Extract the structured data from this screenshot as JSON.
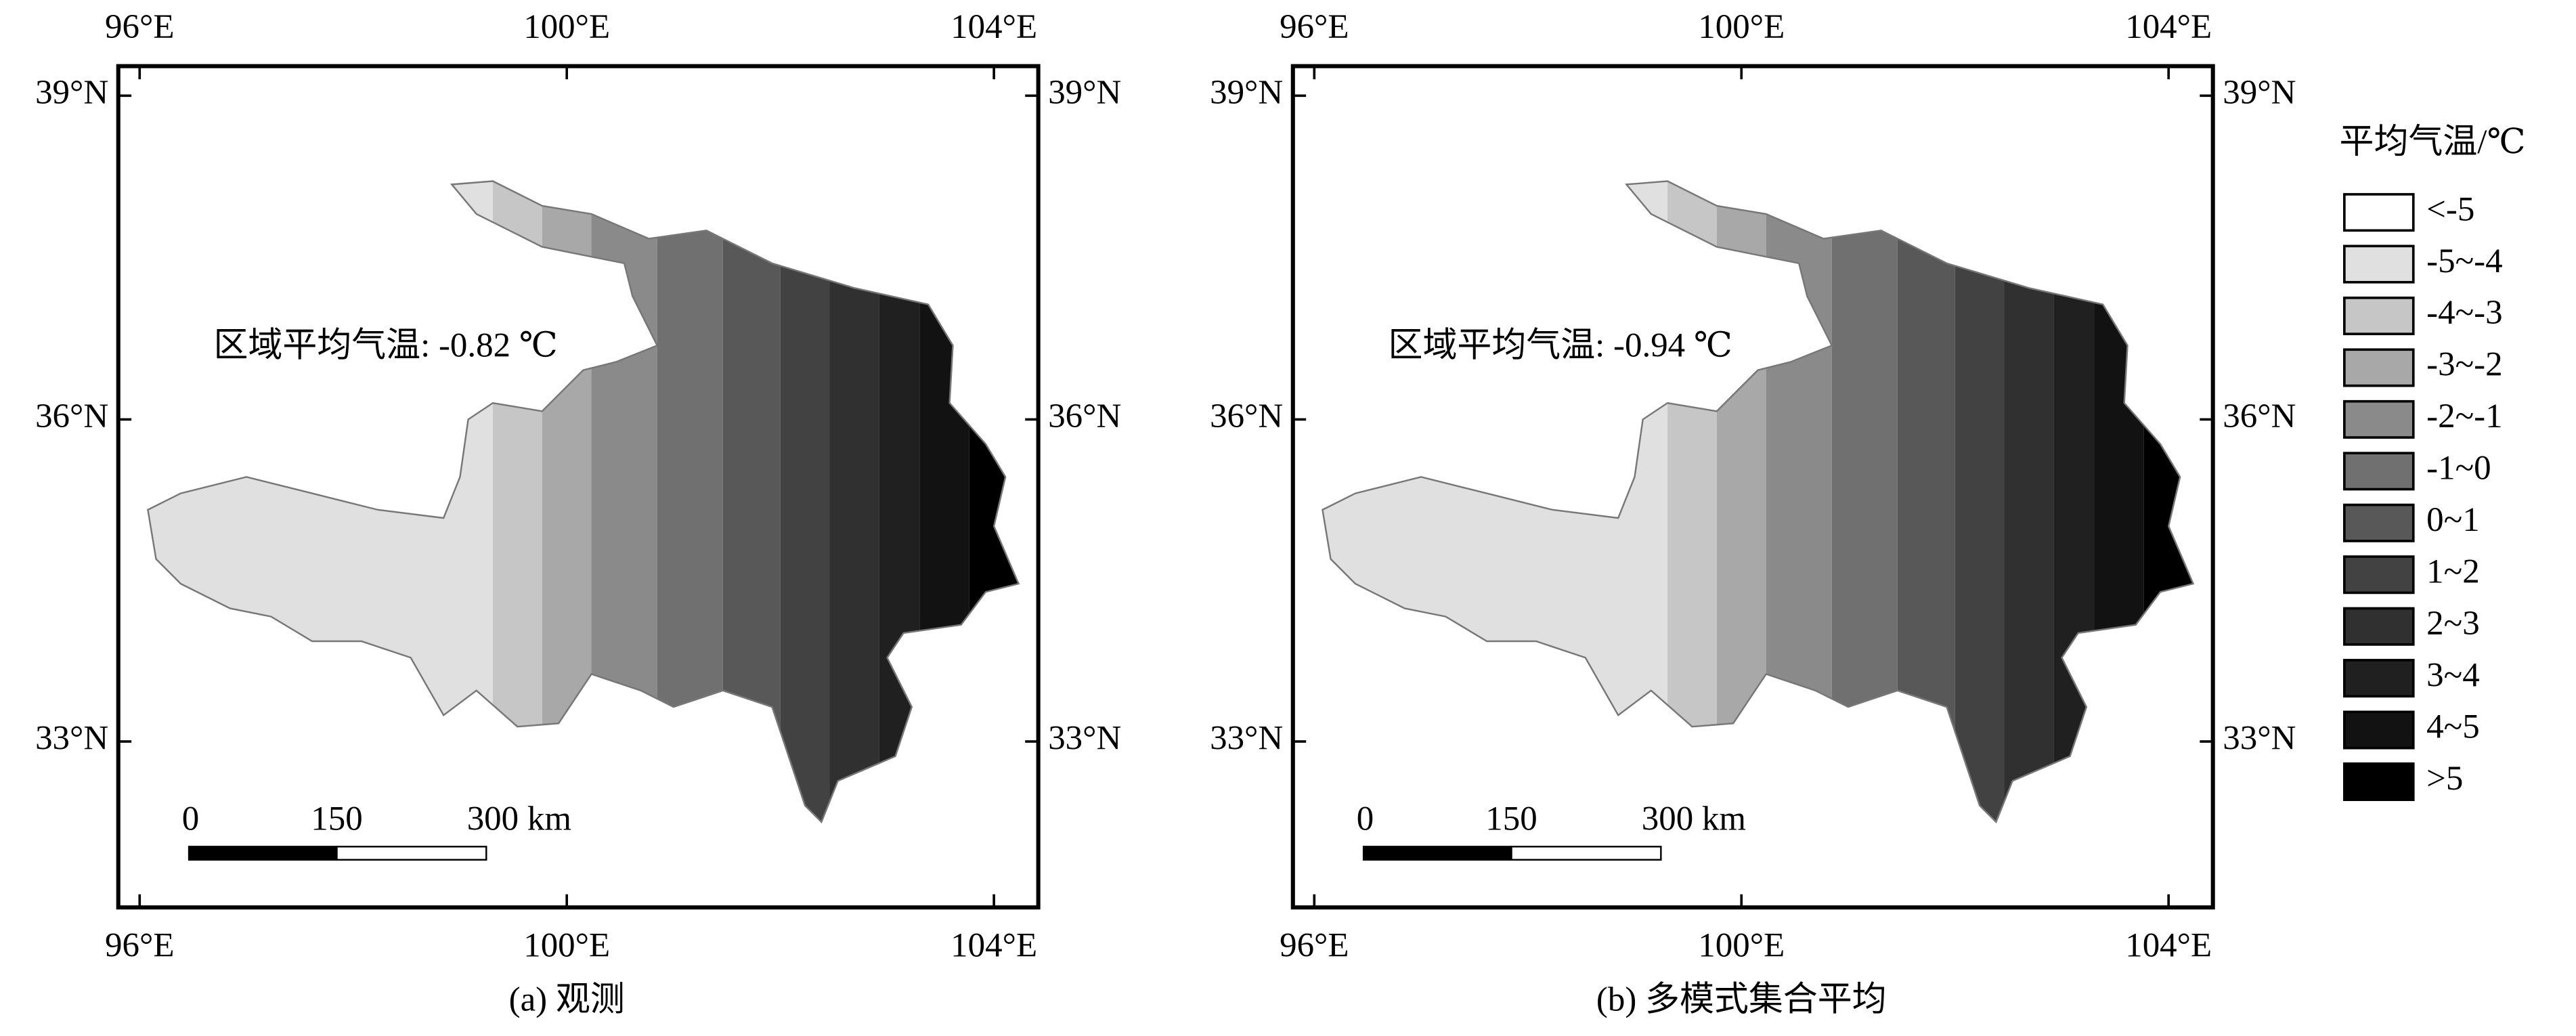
{
  "panels": [
    {
      "caption": "(a) 观测",
      "annotation": "区域平均气温: -0.82 ℃"
    },
    {
      "caption": "(b) 多模式集合平均",
      "annotation": "区域平均气温: -0.94 ℃"
    }
  ],
  "axes": {
    "lon_labels": [
      "96°E",
      "100°E",
      "104°E"
    ],
    "lat_labels": [
      "39°N",
      "36°N",
      "33°N"
    ]
  },
  "scale_bar": {
    "labels": [
      "0",
      "150",
      "300 km"
    ]
  },
  "legend": {
    "title": "平均气温/℃",
    "items": [
      {
        "label": "<-5",
        "color": "#ffffff"
      },
      {
        "label": "-5~-4",
        "color": "#e0e0e0"
      },
      {
        "label": "-4~-3",
        "color": "#c6c6c6"
      },
      {
        "label": "-3~-2",
        "color": "#a8a8a8"
      },
      {
        "label": "-2~-1",
        "color": "#8a8a8a"
      },
      {
        "label": "-1~0",
        "color": "#707070"
      },
      {
        "label": "0~1",
        "color": "#585858"
      },
      {
        "label": "1~2",
        "color": "#424242"
      },
      {
        "label": "2~3",
        "color": "#303030"
      },
      {
        "label": "3~4",
        "color": "#202020"
      },
      {
        "label": "4~5",
        "color": "#121212"
      },
      {
        "label": ">5",
        "color": "#000000"
      }
    ]
  }
}
